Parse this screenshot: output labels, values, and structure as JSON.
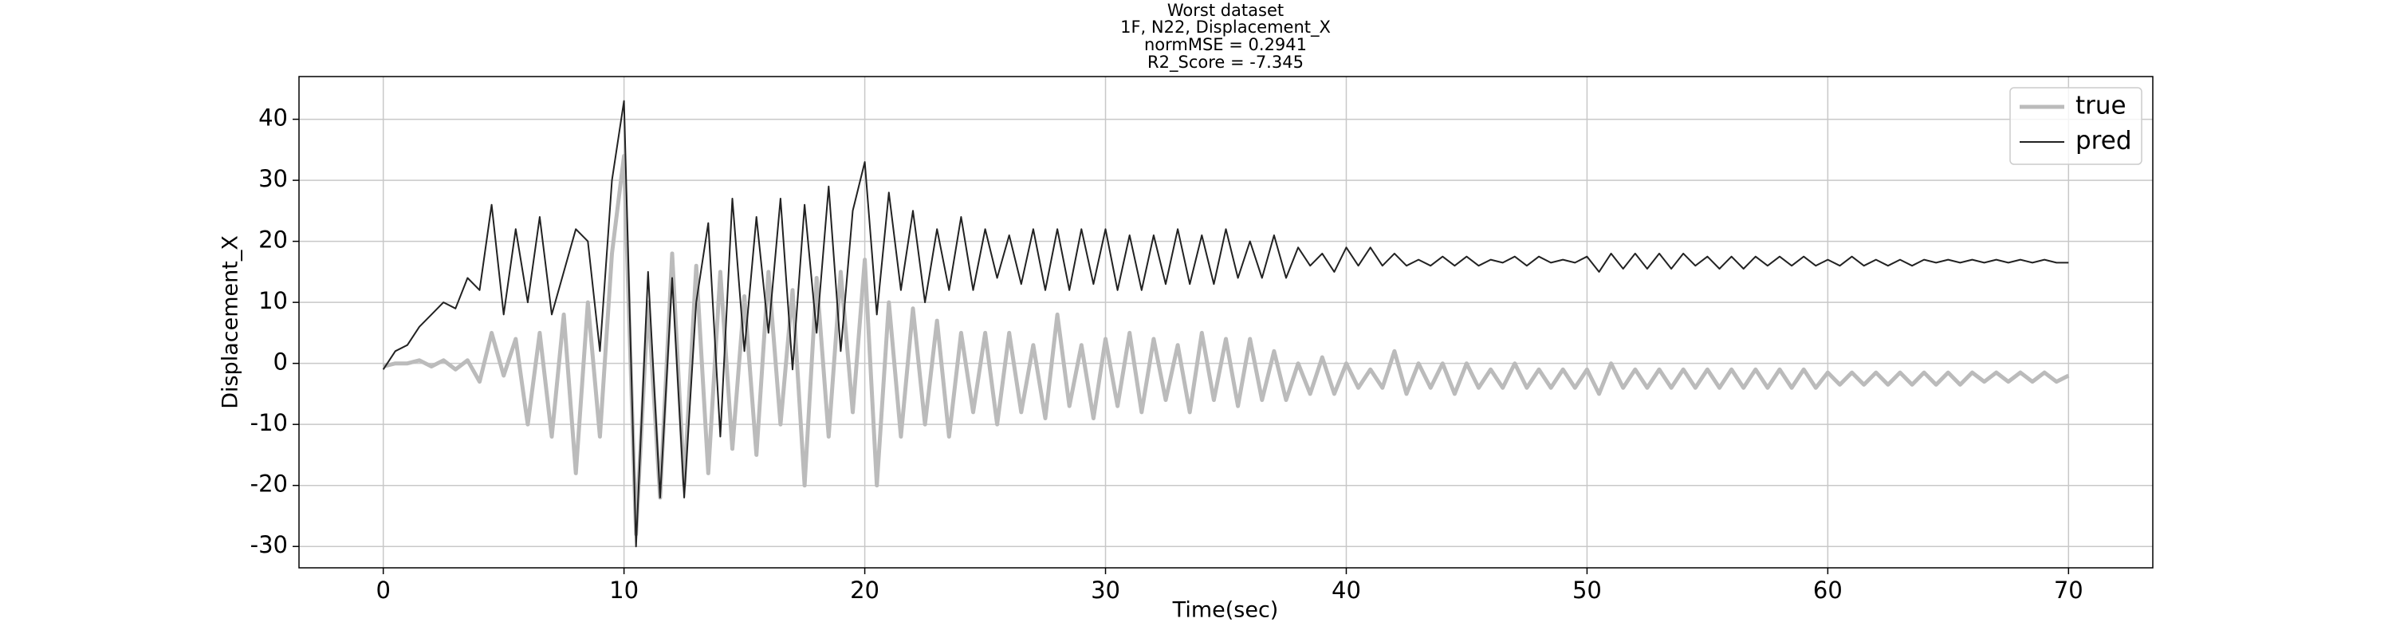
{
  "chart_data": {
    "type": "line",
    "title": [
      "Worst dataset",
      "1F, N22, Displacement_X",
      "normMSE = 0.2941",
      "R2_Score = -7.345"
    ],
    "xlabel": "Time(sec)",
    "ylabel": "Displacement_X",
    "xlim": [
      -3.5,
      73.5
    ],
    "ylim": [
      -33.5,
      47
    ],
    "xticks": [
      0,
      10,
      20,
      30,
      40,
      50,
      60,
      70
    ],
    "yticks": [
      -30,
      -20,
      -10,
      0,
      10,
      20,
      30,
      40
    ],
    "grid": true,
    "legend": "upper right",
    "x": [
      0,
      0.5,
      1,
      1.5,
      2,
      2.5,
      3,
      3.5,
      4,
      4.5,
      5,
      5.5,
      6,
      6.5,
      7,
      7.5,
      8,
      8.5,
      9,
      9.5,
      10,
      10.5,
      11,
      11.5,
      12,
      12.5,
      13,
      13.5,
      14,
      14.5,
      15,
      15.5,
      16,
      16.5,
      17,
      17.5,
      18,
      18.5,
      19,
      19.5,
      20,
      20.5,
      21,
      21.5,
      22,
      22.5,
      23,
      23.5,
      24,
      24.5,
      25,
      25.5,
      26,
      26.5,
      27,
      27.5,
      28,
      28.5,
      29,
      29.5,
      30,
      30.5,
      31,
      31.5,
      32,
      32.5,
      33,
      33.5,
      34,
      34.5,
      35,
      35.5,
      36,
      36.5,
      37,
      37.5,
      38,
      38.5,
      39,
      39.5,
      40,
      40.5,
      41,
      41.5,
      42,
      42.5,
      43,
      43.5,
      44,
      44.5,
      45,
      45.5,
      46,
      46.5,
      47,
      47.5,
      48,
      48.5,
      49,
      49.5,
      50,
      50.5,
      51,
      51.5,
      52,
      52.5,
      53,
      53.5,
      54,
      54.5,
      55,
      55.5,
      56,
      56.5,
      57,
      57.5,
      58,
      58.5,
      59,
      59.5,
      60,
      60.5,
      61,
      61.5,
      62,
      62.5,
      63,
      63.5,
      64,
      64.5,
      65,
      65.5,
      66,
      66.5,
      67,
      67.5,
      68,
      68.5,
      69,
      69.5,
      70
    ],
    "series": [
      {
        "name": "true",
        "color": "#bbbbbb",
        "values": [
          -0.5,
          0,
          0,
          0.5,
          -0.5,
          0.5,
          -1,
          0.5,
          -3,
          5,
          -2,
          4,
          -10,
          5,
          -12,
          8,
          -18,
          10,
          -12,
          18,
          34,
          -28,
          10,
          -22,
          18,
          -20,
          16,
          -18,
          15,
          -14,
          11,
          -15,
          15,
          -10,
          12,
          -20,
          14,
          -12,
          15,
          -8,
          17,
          -20,
          10,
          -12,
          9,
          -10,
          7,
          -12,
          5,
          -8,
          5,
          -10,
          5,
          -8,
          3,
          -9,
          8,
          -7,
          3,
          -9,
          4,
          -7,
          5,
          -8,
          4,
          -6,
          3,
          -8,
          5,
          -6,
          4,
          -7,
          4,
          -6,
          2,
          -6,
          0,
          -5,
          1,
          -5,
          0,
          -4,
          -1,
          -4,
          2,
          -5,
          0,
          -4,
          0,
          -5,
          0,
          -4,
          -1,
          -4,
          0,
          -4,
          -1,
          -4,
          -1,
          -4,
          -1,
          -5,
          0,
          -4,
          -1,
          -4,
          -1,
          -4,
          -1,
          -4,
          -1,
          -4,
          -1,
          -4,
          -1,
          -4,
          -1,
          -4,
          -1,
          -4,
          -1.5,
          -3.5,
          -1.5,
          -3.5,
          -1.5,
          -3.5,
          -1.5,
          -3.5,
          -1.5,
          -3.5,
          -1.5,
          -3.5,
          -1.5,
          -3,
          -1.5,
          -3,
          -1.5,
          -3,
          -1.5,
          -3,
          -2
        ]
      },
      {
        "name": "pred",
        "color": "#222222",
        "values": [
          -1,
          2,
          3,
          6,
          8,
          10,
          9,
          14,
          12,
          26,
          8,
          22,
          10,
          24,
          8,
          15,
          22,
          20,
          2,
          30,
          43,
          -30,
          15,
          -22,
          14,
          -22,
          10,
          23,
          -12,
          27,
          2,
          24,
          5,
          27,
          -1,
          26,
          5,
          29,
          2,
          25,
          33,
          8,
          28,
          12,
          25,
          10,
          22,
          12,
          24,
          12,
          22,
          14,
          21,
          13,
          22,
          12,
          22,
          12,
          22,
          13,
          22,
          12,
          21,
          12,
          21,
          13,
          22,
          13,
          21,
          13,
          22,
          14,
          20,
          14,
          21,
          14,
          19,
          16,
          18,
          15,
          19,
          16,
          19,
          16,
          18,
          16,
          17,
          16,
          17.5,
          16,
          17.5,
          16,
          17,
          16.5,
          17.5,
          16,
          17.5,
          16.5,
          17,
          16.5,
          17.5,
          15,
          18,
          15.5,
          18,
          15.5,
          18,
          15.5,
          18,
          16,
          17.5,
          15.5,
          17.5,
          15.5,
          17.5,
          16,
          17.5,
          16,
          17.5,
          16,
          17,
          16,
          17.5,
          16,
          17,
          16,
          17,
          16,
          17,
          16.5,
          17,
          16.5,
          17,
          16.5,
          17,
          16.5,
          17,
          16.5,
          17,
          16.5,
          16.5
        ]
      }
    ]
  }
}
